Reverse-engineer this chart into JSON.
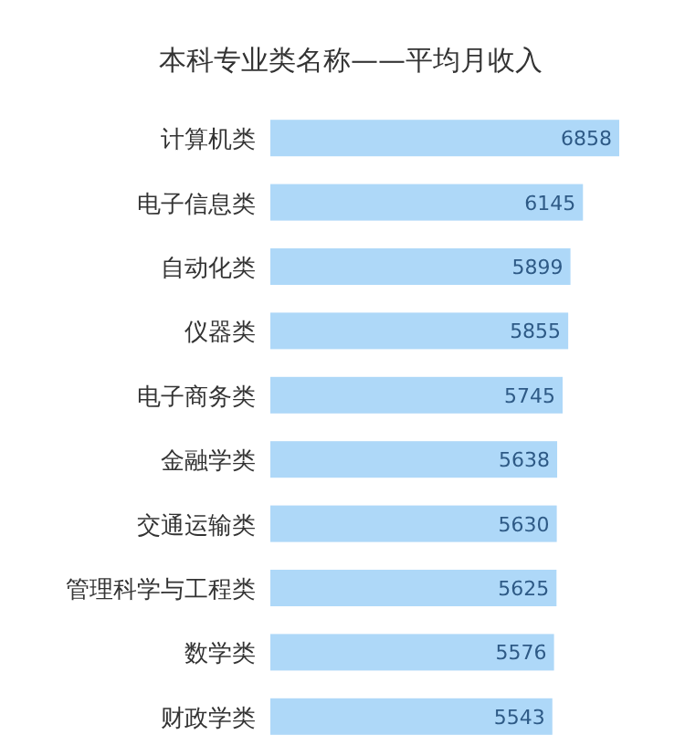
{
  "chart_data": {
    "type": "bar",
    "orientation": "horizontal",
    "title": "本科专业类名称——平均月收入",
    "categories": [
      "计算机类",
      "电子信息类",
      "自动化类",
      "仪器类",
      "电子商务类",
      "金融学类",
      "交通运输类",
      "管理科学与工程类",
      "数学类",
      "财政学类"
    ],
    "values": [
      6858,
      6145,
      5899,
      5855,
      5745,
      5638,
      5630,
      5625,
      5576,
      5543
    ],
    "color": "#aed8f8",
    "data_labels": true,
    "xlim": [
      0,
      6858
    ],
    "tick_labels": "y"
  }
}
